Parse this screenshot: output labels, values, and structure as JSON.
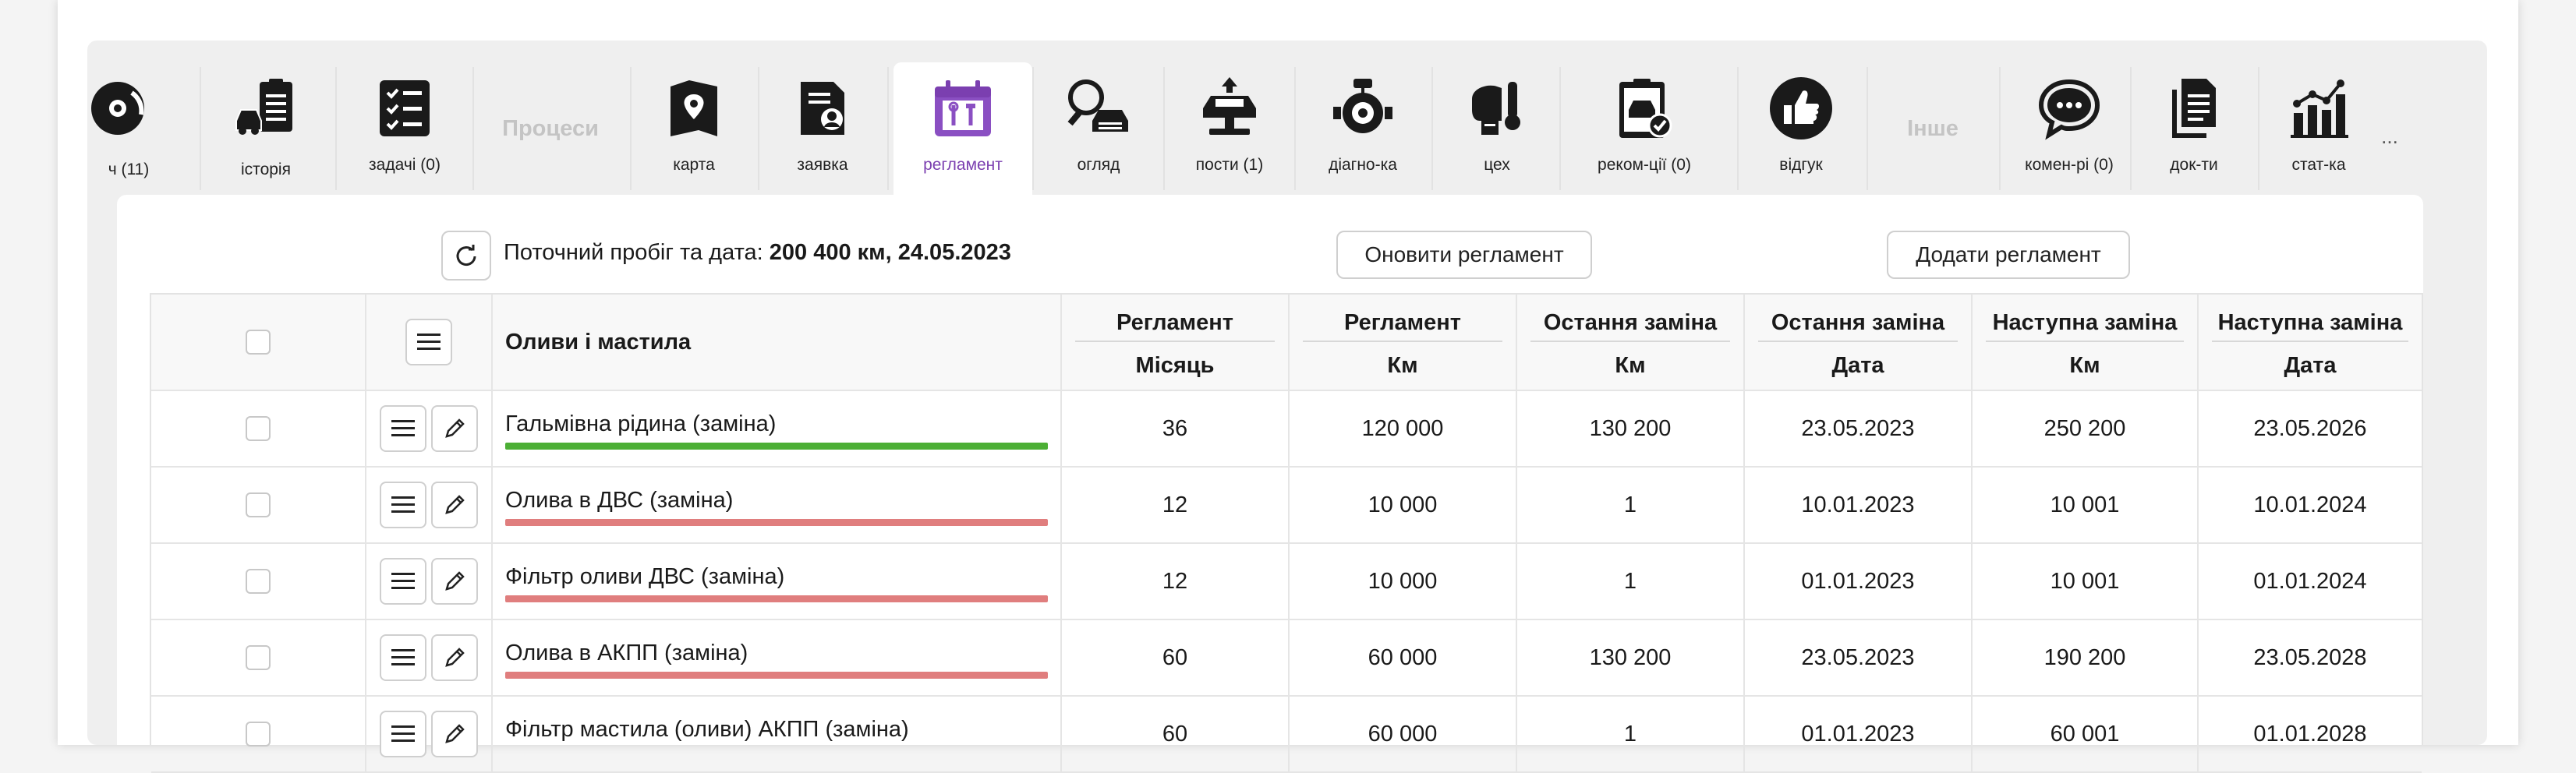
{
  "colors": {
    "accent": "#7b3fb0",
    "ok": "#4caf35",
    "overdue": "#e07e7e"
  },
  "tabs": [
    {
      "label": "ч (11)",
      "icon": "brake-disc-icon",
      "active": false
    },
    {
      "label": "історія",
      "icon": "car-history-icon",
      "active": false
    },
    {
      "label": "задачі (0)",
      "icon": "checklist-icon",
      "active": false
    },
    {
      "label": "карта",
      "icon": "map-pin-icon",
      "active": false
    },
    {
      "label": "заявка",
      "icon": "request-document-icon",
      "active": false
    },
    {
      "label": "регламент",
      "icon": "calendar-tools-icon",
      "active": true
    },
    {
      "label": "огляд",
      "icon": "car-inspection-icon",
      "active": false
    },
    {
      "label": "пости (1)",
      "icon": "car-lift-icon",
      "active": false
    },
    {
      "label": "діагно-ка",
      "icon": "diagnostics-icon",
      "active": false
    },
    {
      "label": "цех",
      "icon": "workshop-icon",
      "active": false
    },
    {
      "label": "реком-ції (0)",
      "icon": "recommendation-clipboard-icon",
      "active": false
    },
    {
      "label": "відгук",
      "icon": "thumbs-up-icon",
      "active": false
    },
    {
      "label": "комен-рі (0)",
      "icon": "comments-icon",
      "active": false
    },
    {
      "label": "док-ти",
      "icon": "documents-icon",
      "active": false
    },
    {
      "label": "стат-ка",
      "icon": "statistics-icon",
      "active": false
    }
  ],
  "groups": {
    "processes": "Процеси",
    "other": "Інше"
  },
  "more_label": "...",
  "toolbar": {
    "mileage_label": "Поточний пробіг та дата:",
    "mileage_value": "200 400 км, 24.05.2023",
    "update_button": "Оновити регламент",
    "add_button": "Додати регламент"
  },
  "table": {
    "name_header": "Оливи і мастила",
    "columns": [
      {
        "top": "Регламент",
        "bottom": "Місяць"
      },
      {
        "top": "Регламент",
        "bottom": "Км"
      },
      {
        "top": "Остання заміна",
        "bottom": "Км"
      },
      {
        "top": "Остання заміна",
        "bottom": "Дата"
      },
      {
        "top": "Наступна заміна",
        "bottom": "Км"
      },
      {
        "top": "Наступна заміна",
        "bottom": "Дата"
      }
    ],
    "rows": [
      {
        "name": "Гальмівна рідина (заміна)",
        "status": "ok",
        "values": [
          "36",
          "120 000",
          "130 200",
          "23.05.2023",
          "250 200",
          "23.05.2026"
        ]
      },
      {
        "name": "Олива в ДВС (заміна)",
        "status": "overdue",
        "values": [
          "12",
          "10 000",
          "1",
          "10.01.2023",
          "10 001",
          "10.01.2024"
        ]
      },
      {
        "name": "Фільтр оливи ДВС (заміна)",
        "status": "overdue",
        "values": [
          "12",
          "10 000",
          "1",
          "01.01.2023",
          "10 001",
          "01.01.2024"
        ]
      },
      {
        "name": "Олива в АКПП (заміна)",
        "status": "overdue",
        "values": [
          "60",
          "60 000",
          "130 200",
          "23.05.2023",
          "190 200",
          "23.05.2028"
        ]
      },
      {
        "name": "Фільтр мастила (оливи) АКПП (заміна)",
        "status": "none",
        "values": [
          "60",
          "60 000",
          "1",
          "01.01.2023",
          "60 001",
          "01.01.2028"
        ]
      }
    ]
  }
}
